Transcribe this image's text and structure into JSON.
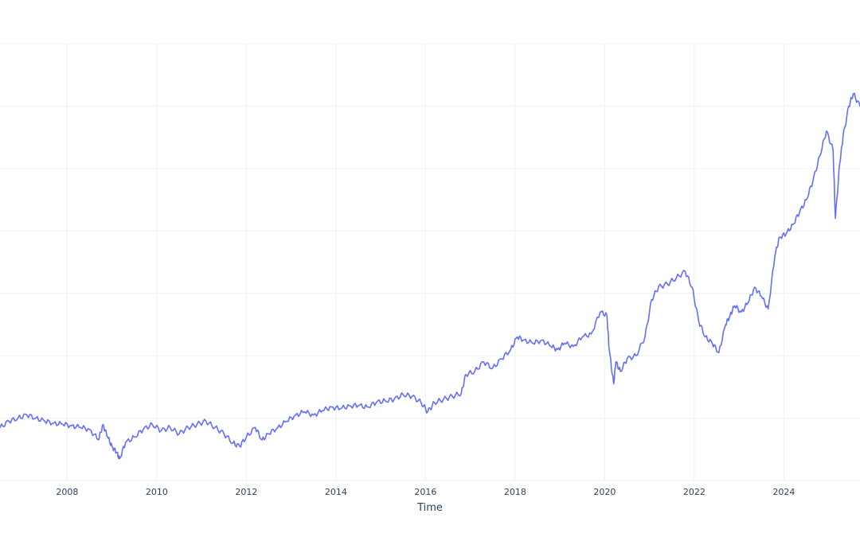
{
  "chart_data": {
    "type": "line",
    "title": "",
    "xlabel": "Time",
    "ylabel": "",
    "x_ticks": [
      "2008",
      "2010",
      "2012",
      "2014",
      "2016",
      "2018",
      "2020",
      "2022",
      "2024"
    ],
    "x_tick_values": [
      2008,
      2010,
      2012,
      2014,
      2016,
      2018,
      2020,
      2022,
      2024
    ],
    "xlim": [
      2006.5,
      2025.7
    ],
    "ylim": [
      0,
      7
    ],
    "y_gridlines": [
      0,
      1,
      2,
      3,
      4,
      5,
      6,
      7
    ],
    "y_tick_labels_visible": false,
    "grid": true,
    "legend": "none",
    "series": [
      {
        "color": "#636efa",
        "x": [
          2006.5,
          2006.7,
          2006.9,
          2007.1,
          2007.3,
          2007.5,
          2007.7,
          2007.9,
          2008.1,
          2008.3,
          2008.5,
          2008.7,
          2008.8,
          2008.9,
          2009.0,
          2009.1,
          2009.17,
          2009.3,
          2009.5,
          2009.7,
          2009.9,
          2010.1,
          2010.3,
          2010.5,
          2010.7,
          2010.9,
          2011.1,
          2011.3,
          2011.5,
          2011.7,
          2011.85,
          2012.0,
          2012.2,
          2012.35,
          2012.5,
          2012.7,
          2012.9,
          2013.1,
          2013.3,
          2013.5,
          2013.7,
          2013.9,
          2014.1,
          2014.3,
          2014.5,
          2014.7,
          2014.9,
          2015.1,
          2015.3,
          2015.5,
          2015.7,
          2015.9,
          2016.05,
          2016.2,
          2016.4,
          2016.6,
          2016.8,
          2016.9,
          2017.1,
          2017.3,
          2017.5,
          2017.7,
          2017.9,
          2018.05,
          2018.2,
          2018.4,
          2018.6,
          2018.8,
          2018.95,
          2019.1,
          2019.3,
          2019.5,
          2019.7,
          2019.9,
          2020.05,
          2020.1,
          2020.2,
          2020.25,
          2020.35,
          2020.5,
          2020.7,
          2020.9,
          2021.05,
          2021.2,
          2021.4,
          2021.6,
          2021.8,
          2021.95,
          2022.1,
          2022.25,
          2022.4,
          2022.55,
          2022.7,
          2022.8,
          2022.9,
          2023.05,
          2023.2,
          2023.35,
          2023.5,
          2023.65,
          2023.8,
          2023.9,
          2024.05,
          2024.2,
          2024.35,
          2024.5,
          2024.65,
          2024.8,
          2024.95,
          2025.1,
          2025.15,
          2025.25,
          2025.32,
          2025.45,
          2025.55,
          2025.7
        ],
        "y": [
          0.85,
          0.95,
          1.0,
          1.05,
          1.0,
          0.95,
          0.92,
          0.9,
          0.88,
          0.85,
          0.82,
          0.65,
          0.9,
          0.7,
          0.55,
          0.45,
          0.35,
          0.6,
          0.7,
          0.82,
          0.9,
          0.8,
          0.85,
          0.75,
          0.85,
          0.9,
          0.95,
          0.85,
          0.75,
          0.6,
          0.55,
          0.7,
          0.85,
          0.65,
          0.75,
          0.85,
          0.95,
          1.05,
          1.1,
          1.05,
          1.12,
          1.18,
          1.15,
          1.2,
          1.2,
          1.18,
          1.25,
          1.28,
          1.3,
          1.38,
          1.35,
          1.25,
          1.1,
          1.25,
          1.3,
          1.35,
          1.4,
          1.7,
          1.75,
          1.9,
          1.8,
          1.95,
          2.1,
          2.3,
          2.25,
          2.2,
          2.25,
          2.15,
          2.1,
          2.2,
          2.15,
          2.3,
          2.35,
          2.7,
          2.65,
          2.1,
          1.55,
          1.9,
          1.75,
          1.95,
          2.0,
          2.3,
          2.9,
          3.1,
          3.15,
          3.25,
          3.35,
          3.1,
          2.55,
          2.3,
          2.2,
          2.05,
          2.5,
          2.65,
          2.8,
          2.7,
          2.85,
          3.1,
          2.95,
          2.75,
          3.6,
          3.9,
          3.95,
          4.1,
          4.3,
          4.5,
          4.8,
          5.2,
          5.6,
          5.3,
          4.2,
          5.1,
          5.5,
          6.0,
          6.2,
          6.0
        ]
      }
    ]
  }
}
